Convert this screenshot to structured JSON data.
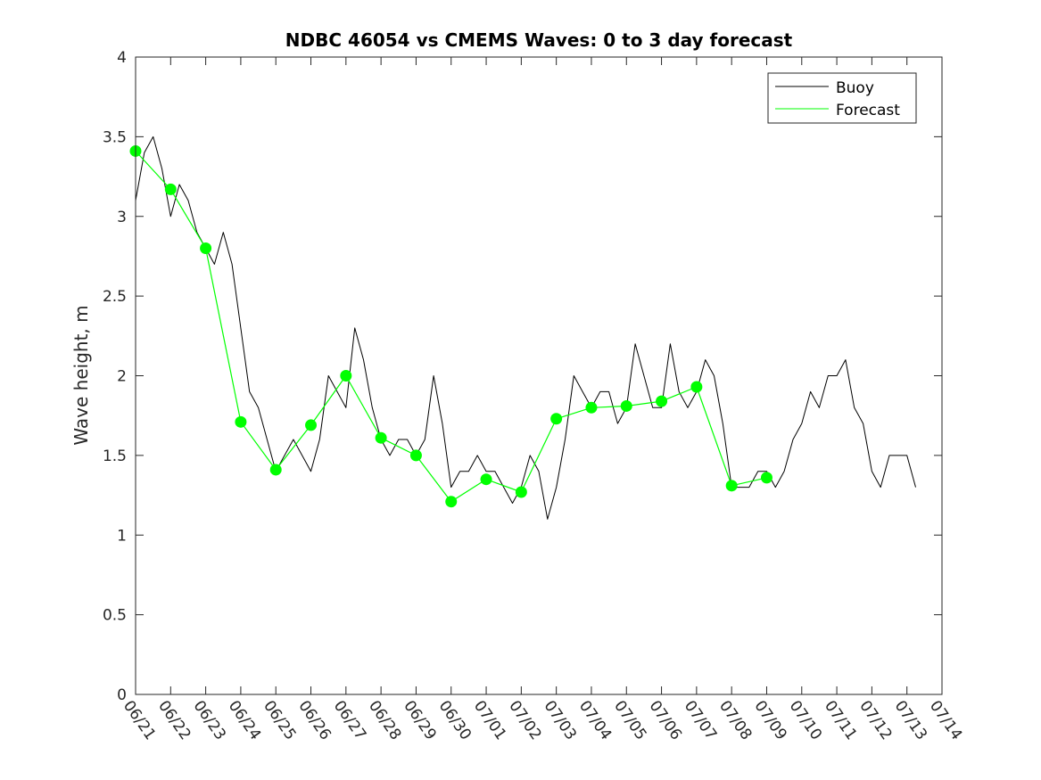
{
  "chart_data": {
    "type": "line",
    "title": "NDBC 46054 vs CMEMS Waves: 0 to 3 day forecast",
    "xlabel": "",
    "ylabel": "Wave height, m",
    "ylim": [
      0,
      4
    ],
    "yticks": [
      0,
      0.5,
      1,
      1.5,
      2,
      2.5,
      3,
      3.5,
      4
    ],
    "ytick_labels": [
      "0",
      "0.5",
      "1",
      "1.5",
      "2",
      "2.5",
      "3",
      "3.5",
      "4"
    ],
    "xlim": [
      "06/21",
      "07/14"
    ],
    "xtick_labels": [
      "06/21",
      "06/22",
      "06/23",
      "06/24",
      "06/25",
      "06/26",
      "06/27",
      "06/28",
      "06/29",
      "06/30",
      "07/01",
      "07/02",
      "07/03",
      "07/04",
      "07/05",
      "07/06",
      "07/07",
      "07/08",
      "07/09",
      "07/10",
      "07/11",
      "07/12",
      "07/13",
      "07/14"
    ],
    "grid": false,
    "legend_position": "top-right",
    "colors": {
      "buoy": "#000000",
      "forecast": "#00ff00"
    },
    "series": [
      {
        "name": "Buoy",
        "x": [
          "06/21 00:00",
          "06/21 06:00",
          "06/21 12:00",
          "06/21 18:00",
          "06/22 00:00",
          "06/22 06:00",
          "06/22 12:00",
          "06/22 18:00",
          "06/23 00:00",
          "06/23 06:00",
          "06/23 12:00",
          "06/23 18:00",
          "06/24 00:00",
          "06/24 06:00",
          "06/24 12:00",
          "06/24 18:00",
          "06/25 00:00",
          "06/25 06:00",
          "06/25 12:00",
          "06/25 18:00",
          "06/26 00:00",
          "06/26 06:00",
          "06/26 12:00",
          "06/26 18:00",
          "06/27 00:00",
          "06/27 06:00",
          "06/27 12:00",
          "06/27 18:00",
          "06/28 00:00",
          "06/28 06:00",
          "06/28 12:00",
          "06/28 18:00",
          "06/29 00:00",
          "06/29 06:00",
          "06/29 12:00",
          "06/29 18:00",
          "06/30 00:00",
          "06/30 06:00",
          "06/30 12:00",
          "06/30 18:00",
          "07/01 00:00",
          "07/01 06:00",
          "07/01 12:00",
          "07/01 18:00",
          "07/02 00:00",
          "07/02 06:00",
          "07/02 12:00",
          "07/02 18:00",
          "07/03 00:00",
          "07/03 06:00",
          "07/03 12:00",
          "07/03 18:00",
          "07/04 00:00",
          "07/04 06:00",
          "07/04 12:00",
          "07/04 18:00",
          "07/05 00:00",
          "07/05 06:00",
          "07/05 12:00",
          "07/05 18:00",
          "07/06 00:00",
          "07/06 06:00",
          "07/06 12:00",
          "07/06 18:00",
          "07/07 00:00",
          "07/07 06:00",
          "07/07 12:00",
          "07/07 18:00",
          "07/08 00:00",
          "07/08 06:00",
          "07/08 12:00",
          "07/08 18:00",
          "07/09 00:00",
          "07/09 06:00",
          "07/09 12:00",
          "07/09 18:00",
          "07/10 00:00",
          "07/10 06:00",
          "07/10 12:00",
          "07/10 18:00",
          "07/11 00:00",
          "07/11 06:00",
          "07/11 12:00",
          "07/11 18:00",
          "07/12 00:00",
          "07/12 06:00",
          "07/12 12:00",
          "07/12 18:00",
          "07/13 00:00",
          "07/13 06:00"
        ],
        "y": [
          3.1,
          3.4,
          3.5,
          3.3,
          3.0,
          3.2,
          3.1,
          2.9,
          2.8,
          2.7,
          2.9,
          2.7,
          2.3,
          1.9,
          1.8,
          1.6,
          1.4,
          1.5,
          1.6,
          1.5,
          1.4,
          1.6,
          2.0,
          1.9,
          1.8,
          2.3,
          2.1,
          1.8,
          1.6,
          1.5,
          1.6,
          1.6,
          1.5,
          1.6,
          2.0,
          1.7,
          1.3,
          1.4,
          1.4,
          1.5,
          1.4,
          1.4,
          1.3,
          1.2,
          1.3,
          1.5,
          1.4,
          1.1,
          1.3,
          1.6,
          2.0,
          1.9,
          1.8,
          1.9,
          1.9,
          1.7,
          1.8,
          2.2,
          2.0,
          1.8,
          1.8,
          2.2,
          1.9,
          1.8,
          1.9,
          2.1,
          2.0,
          1.7,
          1.3,
          1.3,
          1.3,
          1.4,
          1.4,
          1.3,
          1.4,
          1.6,
          1.7,
          1.9,
          1.8,
          2.0,
          2.0,
          2.1,
          1.8,
          1.7,
          1.4,
          1.3,
          1.5,
          1.5,
          1.5,
          1.3
        ]
      },
      {
        "name": "Forecast",
        "x": [
          "06/21",
          "06/22",
          "06/23",
          "06/24",
          "06/25",
          "06/26",
          "06/27",
          "06/28",
          "06/29",
          "06/30",
          "07/01",
          "07/02",
          "07/03",
          "07/04",
          "07/05",
          "07/06",
          "07/07",
          "07/08",
          "07/09"
        ],
        "y": [
          3.41,
          3.17,
          2.8,
          1.71,
          1.41,
          1.69,
          2.0,
          1.61,
          1.5,
          1.21,
          1.35,
          1.27,
          1.73,
          1.8,
          1.81,
          1.84,
          1.93,
          1.31,
          1.36
        ]
      }
    ]
  }
}
